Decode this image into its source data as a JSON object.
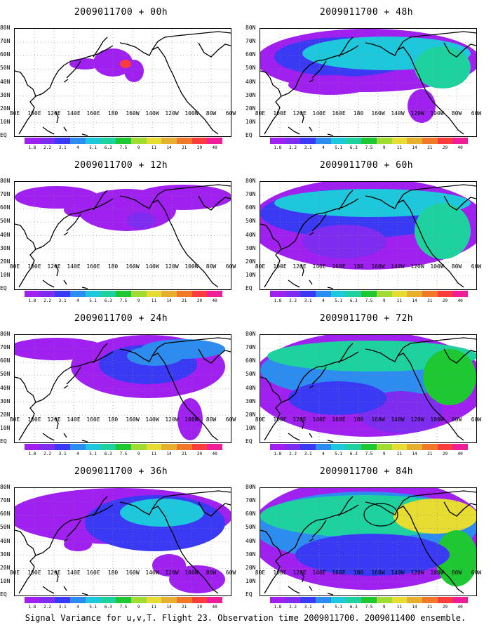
{
  "panels": [
    {
      "title": "2009011700 + 00h",
      "level": 0
    },
    {
      "title": "2009011700 + 48h",
      "level": 4
    },
    {
      "title": "2009011700 + 12h",
      "level": 1
    },
    {
      "title": "2009011700 + 60h",
      "level": 5
    },
    {
      "title": "2009011700 + 24h",
      "level": 2
    },
    {
      "title": "2009011700 + 72h",
      "level": 6
    },
    {
      "title": "2009011700 + 36h",
      "level": 3
    },
    {
      "title": "2009011700 + 84h",
      "level": 7
    }
  ],
  "lat_labels": [
    "80N",
    "70N",
    "60N",
    "50N",
    "40N",
    "30N",
    "20N",
    "10N",
    "EQ"
  ],
  "lon_labels": [
    "80E",
    "100E",
    "120E",
    "140E",
    "160E",
    "180",
    "160W",
    "140W",
    "120W",
    "100W",
    "80W",
    "60W"
  ],
  "colorbar": {
    "labels": [
      "1.8",
      "2.2",
      "3.1",
      "4",
      "5.1",
      "6.3",
      "7.5",
      "9",
      "11",
      "14",
      "21",
      "29",
      "40"
    ],
    "colors": [
      "#a020f0",
      "#7d2cf0",
      "#3a3af5",
      "#2c8cf0",
      "#1ec8dc",
      "#1ed2a0",
      "#1ec832",
      "#a0dc32",
      "#e6dc32",
      "#e6af2d",
      "#f07828",
      "#fa3c3c",
      "#f01e96"
    ]
  },
  "footer": "Signal Variance for u,v,T. Flight 23. Observation time 2009011700. 2009011400 ensemble."
}
